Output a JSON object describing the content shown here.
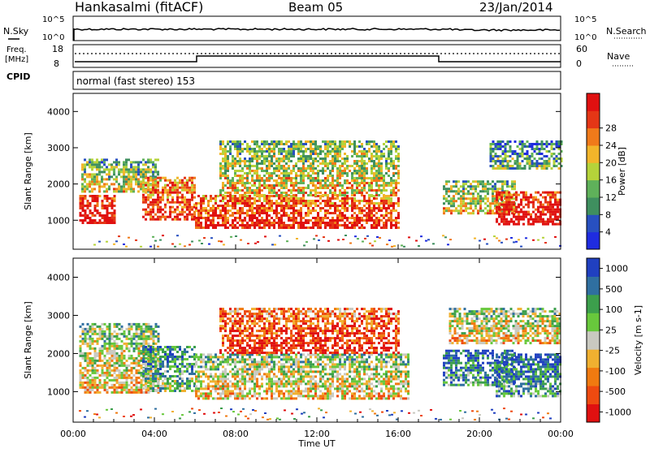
{
  "header": {
    "station": "Hankasalmi (fitACF)",
    "beam": "Beam 05",
    "date": "23/Jan/2014"
  },
  "noise_panel": {
    "left_label": "N.Sky",
    "right_label": "N.Search",
    "left_ticks": [
      "10^5",
      "10^0"
    ],
    "right_ticks": [
      "10^5",
      "10^0"
    ]
  },
  "freq_panel": {
    "left_label_line1": "Freq.",
    "left_label_line2": "[MHz]",
    "left_ticks": [
      "18",
      "8"
    ],
    "right_label": "Nave",
    "right_ticks": [
      "60",
      "0"
    ]
  },
  "cpid": {
    "label": "CPID",
    "value": "normal (fast stereo) 153"
  },
  "chart_data": [
    {
      "type": "heatmap",
      "panel": "power",
      "ylabel": "Slant Range [km]",
      "yticks": [
        "1000",
        "2000",
        "3000",
        "4000"
      ],
      "ylim": [
        200,
        4500
      ],
      "xlim": [
        0,
        24
      ],
      "colorbar_label": "Power [dB]",
      "colorbar_ticks": [
        "4",
        "8",
        "12",
        "16",
        "20",
        "24",
        "28"
      ],
      "colors": [
        "#1f2ce0",
        "#2850c0",
        "#3f8f5f",
        "#5fb15a",
        "#b5d33a",
        "#f2b52a",
        "#f07a1a",
        "#e43616",
        "#e01010"
      ],
      "echo_regions": [
        {
          "t0": 0.3,
          "t1": 2.0,
          "r0": 950,
          "r1": 1700,
          "level": 0.95
        },
        {
          "t0": 0.4,
          "t1": 4.2,
          "r0": 1800,
          "r1": 2700,
          "level": 0.45
        },
        {
          "t0": 3.4,
          "t1": 6.0,
          "r0": 1000,
          "r1": 2200,
          "level": 0.8
        },
        {
          "t0": 6.0,
          "t1": 16.0,
          "r0": 800,
          "r1": 1700,
          "level": 0.85
        },
        {
          "t0": 7.2,
          "t1": 16.0,
          "r0": 1700,
          "r1": 3200,
          "level": 0.5
        },
        {
          "t0": 18.2,
          "t1": 21.8,
          "r0": 1200,
          "r1": 2100,
          "level": 0.5
        },
        {
          "t0": 20.8,
          "t1": 24.0,
          "r0": 900,
          "r1": 1800,
          "level": 0.95
        },
        {
          "t0": 20.5,
          "t1": 24.0,
          "r0": 2400,
          "r1": 3200,
          "level": 0.3
        }
      ]
    },
    {
      "type": "heatmap",
      "panel": "velocity",
      "ylabel": "Slant Range [km]",
      "yticks": [
        "1000",
        "2000",
        "3000",
        "4000"
      ],
      "ylim": [
        200,
        4500
      ],
      "xlim": [
        0,
        24
      ],
      "colorbar_label": "Velocity [m s-1]",
      "colorbar_ticks": [
        "1000",
        "500",
        "100",
        "25",
        "-25",
        "-100",
        "-500",
        "-1000"
      ],
      "colors": [
        "#2040c0",
        "#2f6fa0",
        "#3c9f4c",
        "#68c83c",
        "#c9c9c0",
        "#f0b030",
        "#f07a10",
        "#ee4a10",
        "#e01010"
      ],
      "echo_regions": [
        {
          "t0": 0.3,
          "t1": 4.2,
          "r0": 1000,
          "r1": 2800,
          "level": 0.5
        },
        {
          "t0": 3.4,
          "t1": 6.0,
          "r0": 1000,
          "r1": 2200,
          "level": 0.3
        },
        {
          "t0": 6.0,
          "t1": 16.5,
          "r0": 800,
          "r1": 2000,
          "level": 0.5
        },
        {
          "t0": 7.2,
          "t1": 16.0,
          "r0": 2000,
          "r1": 3200,
          "level": 0.85
        },
        {
          "t0": 18.2,
          "t1": 21.8,
          "r0": 1200,
          "r1": 2100,
          "level": 0.2
        },
        {
          "t0": 20.8,
          "t1": 24.0,
          "r0": 900,
          "r1": 2000,
          "level": 0.2
        },
        {
          "t0": 18.5,
          "t1": 24.0,
          "r0": 2300,
          "r1": 3200,
          "level": 0.5
        }
      ]
    }
  ],
  "time_axis": {
    "ticks": [
      "00:00",
      "04:00",
      "08:00",
      "12:00",
      "16:00",
      "20:00",
      "00:00"
    ],
    "label": "Time UT"
  }
}
